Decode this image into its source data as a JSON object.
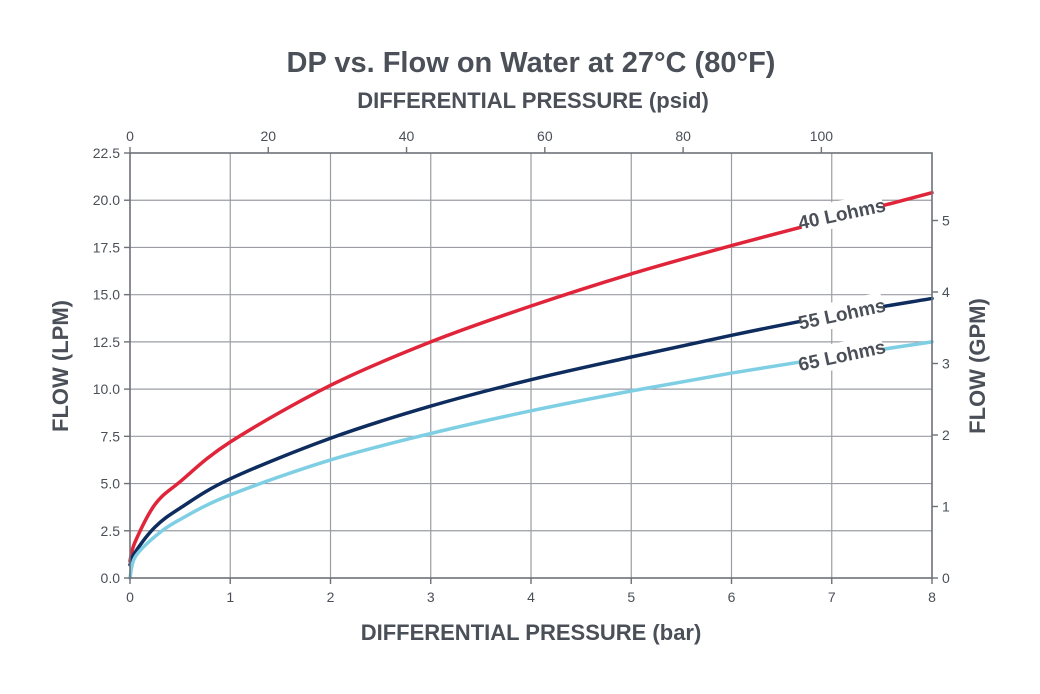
{
  "chart_data": {
    "type": "line",
    "title": "DP vs. Flow on Water at 27°C (80°F)",
    "x_top_label": "DIFFERENTIAL PRESSURE (psid)",
    "xlabel": "DIFFERENTIAL PRESSURE (bar)",
    "ylabel": "FLOW (LPM)",
    "y_right_label": "FLOW (GPM)",
    "xlim": [
      0,
      8
    ],
    "ylim": [
      0,
      22.5
    ],
    "x_ticks": [
      0,
      1,
      2,
      3,
      4,
      5,
      6,
      7,
      8
    ],
    "y_ticks": [
      "0.0",
      "2.5",
      "5.0",
      "7.5",
      "10.0",
      "12.5",
      "15.0",
      "17.5",
      "20.0",
      "22.5"
    ],
    "x_top_range": [
      0,
      116
    ],
    "x_top_ticks": [
      0,
      20,
      40,
      60,
      80,
      100
    ],
    "y_right_range": [
      0,
      5.944
    ],
    "y_right_ticks": [
      0,
      1,
      2,
      3,
      4,
      5
    ],
    "grid": true,
    "series": [
      {
        "name": "40 Lohms",
        "color": "#e0253a",
        "x": [
          0,
          0.05,
          0.25,
          0.5,
          1,
          2,
          3,
          4,
          5,
          6,
          7,
          8
        ],
        "y": [
          0.9,
          1.9,
          3.9,
          5.1,
          7.2,
          10.2,
          12.5,
          14.4,
          16.1,
          17.6,
          19.0,
          20.4
        ]
      },
      {
        "name": "55 Lohms",
        "color": "#0e2d5e",
        "x": [
          0,
          0.05,
          0.25,
          0.5,
          1,
          2,
          3,
          4,
          5,
          6,
          7,
          8
        ],
        "y": [
          0.7,
          1.35,
          2.7,
          3.7,
          5.25,
          7.4,
          9.1,
          10.5,
          11.7,
          12.85,
          13.9,
          14.8
        ]
      },
      {
        "name": "65 Lohms",
        "color": "#7ecfe4",
        "x": [
          0,
          0.05,
          0.25,
          0.5,
          1,
          2,
          3,
          4,
          5,
          6,
          7,
          8
        ],
        "y": [
          0.0,
          1.1,
          2.2,
          3.1,
          4.4,
          6.25,
          7.65,
          8.85,
          9.9,
          10.85,
          11.7,
          12.5
        ]
      }
    ],
    "series_labels": [
      {
        "text": "40 Lohms",
        "x": 7.1,
        "y": 19.3
      },
      {
        "text": "55 Lohms",
        "x": 7.1,
        "y": 14.0
      },
      {
        "text": "65 Lohms",
        "x": 7.1,
        "y": 11.8
      }
    ]
  }
}
